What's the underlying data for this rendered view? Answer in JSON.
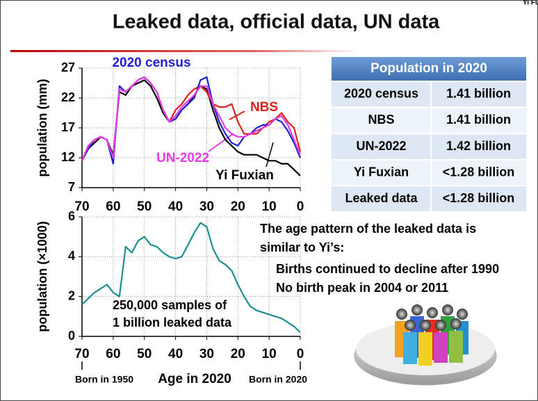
{
  "title": "Leaked data, official data, UN data",
  "corner_label": "Yi Fuxian",
  "chart_data": [
    {
      "type": "line",
      "ylabel": "population (mm)",
      "x": [
        70,
        68,
        66,
        64,
        62,
        60,
        58,
        56,
        54,
        52,
        50,
        48,
        46,
        44,
        42,
        40,
        38,
        36,
        34,
        32,
        30,
        28,
        26,
        24,
        22,
        20,
        18,
        16,
        14,
        12,
        10,
        8,
        6,
        4,
        2,
        0
      ],
      "xlim": [
        70,
        0
      ],
      "xticks": [
        70,
        60,
        50,
        40,
        30,
        20,
        10,
        0
      ],
      "ylim": [
        7,
        27
      ],
      "yticks": [
        7,
        12,
        17,
        22,
        27
      ],
      "grid": true,
      "series": [
        {
          "name": "Yi Fuxian",
          "color": "#000000",
          "values": [
            11.5,
            13.5,
            14.5,
            15.5,
            15,
            12.5,
            23,
            22.5,
            24,
            24.5,
            25,
            24,
            22,
            19.5,
            18,
            18.5,
            20,
            21,
            22.5,
            24,
            23.5,
            20,
            17,
            15,
            14,
            13,
            12.5,
            12.5,
            12.5,
            12,
            11.5,
            11.5,
            11,
            11,
            10,
            9
          ]
        },
        {
          "name": "NBS",
          "color": "#e0201a",
          "values": [
            11.5,
            14,
            15,
            15.5,
            15,
            12,
            23.5,
            23,
            24,
            25,
            25.5,
            24.5,
            23,
            20,
            18,
            20,
            21,
            22.5,
            23.5,
            24,
            23,
            21,
            20.5,
            20.5,
            21,
            18,
            16,
            16,
            16,
            17,
            18,
            18.5,
            19.5,
            18,
            17,
            13
          ]
        },
        {
          "name": "2020 census",
          "color": "#1f1fd6",
          "values": [
            11.5,
            13.5,
            15,
            15.5,
            15,
            11,
            24,
            23,
            24,
            25,
            25.5,
            24.5,
            23,
            20,
            18,
            18.5,
            20,
            21,
            22,
            25,
            25.5,
            21,
            18,
            16,
            14.5,
            14,
            15.5,
            16,
            17,
            17.5,
            17.5,
            18.5,
            18,
            16.5,
            14.5,
            12
          ]
        },
        {
          "name": "UN-2022",
          "color": "#e83be8",
          "values": [
            11.5,
            14,
            15,
            15.5,
            15,
            12,
            23.5,
            23,
            24,
            25,
            25.5,
            24.5,
            23,
            20,
            18,
            19,
            20.5,
            21.5,
            22.5,
            24,
            24,
            21,
            19,
            17,
            16,
            15.5,
            15.5,
            16,
            16.5,
            17,
            17.5,
            18.5,
            19,
            17.5,
            15,
            12.5
          ]
        }
      ]
    },
    {
      "type": "line",
      "ylabel": "population (×1000)",
      "xlabel": "Age in 2020",
      "x_annotations": [
        "Born in 1950",
        "Born in 2020"
      ],
      "annotation_lines": [
        "250,000 samples of",
        "1 billion leaked data"
      ],
      "x": [
        70,
        68,
        66,
        64,
        62,
        60,
        58,
        56,
        54,
        52,
        50,
        48,
        46,
        44,
        42,
        40,
        38,
        36,
        34,
        32,
        30,
        28,
        26,
        24,
        22,
        20,
        18,
        16,
        14,
        12,
        10,
        8,
        6,
        4,
        2,
        0
      ],
      "xlim": [
        70,
        0
      ],
      "xticks": [
        70,
        60,
        50,
        40,
        30,
        20,
        10,
        0
      ],
      "ylim": [
        0,
        6
      ],
      "yticks": [
        0,
        2,
        4,
        6
      ],
      "grid": true,
      "color": "#1a8f8f",
      "values": [
        1.6,
        1.9,
        2.2,
        2.4,
        2.6,
        2.2,
        2.0,
        4.5,
        4.2,
        4.8,
        5.0,
        4.6,
        4.5,
        4.2,
        4.0,
        3.9,
        4.0,
        4.6,
        5.2,
        5.7,
        5.5,
        4.4,
        3.8,
        3.6,
        3.3,
        2.6,
        2.0,
        1.5,
        1.3,
        1.2,
        1.1,
        1.0,
        0.9,
        0.7,
        0.5,
        0.2
      ]
    }
  ],
  "table": {
    "header": "Population in 2020",
    "rows": [
      [
        "2020 census",
        "1.41 billion"
      ],
      [
        "NBS",
        "1.41 billion"
      ],
      [
        "UN-2022",
        "1.42 billion"
      ],
      [
        "Yi Fuxian",
        "<1.28 billion"
      ],
      [
        "Leaked data",
        "<1.28 billion"
      ]
    ]
  },
  "notes": {
    "lines": [
      "The age pattern of the leaked data is",
      "similar to Yi’s:"
    ],
    "bullets": [
      "Births continued to decline after 1990",
      "No birth peak in 2004 or 2011"
    ]
  }
}
